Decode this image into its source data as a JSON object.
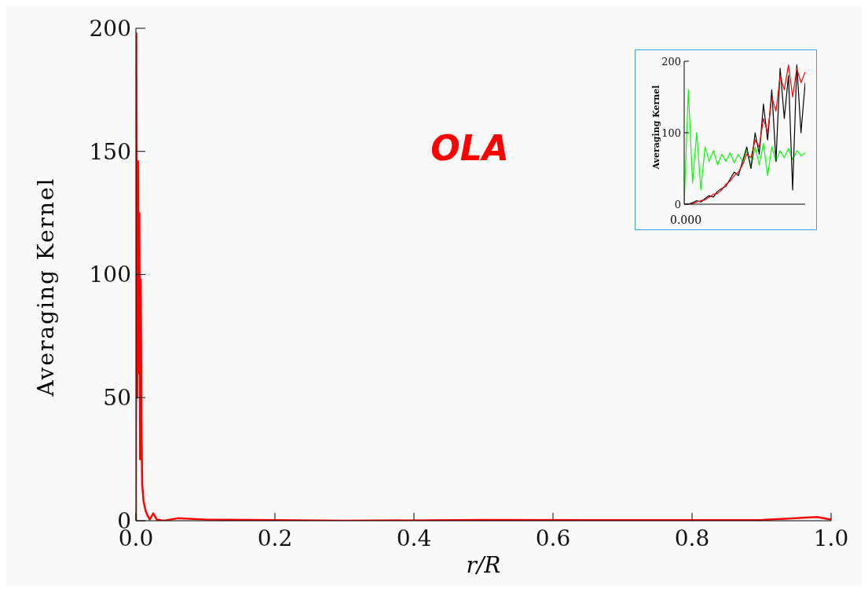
{
  "chart_data": [
    {
      "type": "line",
      "title": "OLA",
      "xlabel": "r/R",
      "ylabel": "Averaging Kernel",
      "x": [
        0,
        0.0005,
        0.001,
        0.002,
        0.003,
        0.004,
        0.005,
        0.006,
        0.007,
        0.008,
        0.009,
        0.011,
        0.014,
        0.017,
        0.02,
        0.025,
        0.03,
        0.04,
        0.06,
        0.1,
        0.3,
        0.5,
        0.7,
        0.9,
        0.98,
        1.0
      ],
      "series": [
        {
          "color": "#ff0000",
          "values": [
            0,
            198,
            120,
            50,
            146,
            60,
            125,
            25,
            98,
            40,
            15,
            8,
            4,
            2,
            0.5,
            3,
            0.5,
            0,
            1,
            0.5,
            0,
            0.3,
            0.2,
            0.3,
            1.5,
            0.5
          ]
        }
      ],
      "xlim": [
        0,
        1
      ],
      "xticks": [
        {
          "value": 0,
          "label": "0.0"
        },
        0.2,
        0.4,
        0.6,
        0.8,
        {
          "value": 1,
          "label": "1.0"
        }
      ],
      "ylim": [
        0,
        200
      ],
      "yticks": [
        0,
        50,
        100,
        150,
        200
      ],
      "marker": "none",
      "line_style": "solid"
    },
    {
      "type": "line",
      "ylabel": "Averaging Kernel",
      "categories": [
        null,
        null,
        null,
        null,
        null,
        null,
        null,
        null,
        null,
        null,
        null,
        null,
        null,
        null,
        null,
        null,
        null,
        null,
        null,
        null,
        null,
        null,
        null,
        null,
        null,
        null,
        null,
        null,
        null,
        null
      ],
      "series": [
        {
          "color": "#00ff00",
          "values": [
            0,
            160,
            30,
            100,
            20,
            80,
            60,
            75,
            55,
            70,
            60,
            72,
            58,
            70,
            60,
            75,
            50,
            80,
            55,
            85,
            40,
            80,
            60,
            75,
            65,
            78,
            62,
            75,
            68,
            72
          ]
        },
        {
          "color": "#000000",
          "values": [
            0,
            0,
            2,
            5,
            3,
            8,
            12,
            10,
            18,
            22,
            25,
            35,
            45,
            40,
            60,
            80,
            50,
            100,
            70,
            140,
            90,
            160,
            60,
            190,
            120,
            180,
            20,
            195,
            100,
            170
          ]
        },
        {
          "color": "#ff0000",
          "values": [
            0,
            0,
            1,
            3,
            5,
            6,
            10,
            14,
            15,
            20,
            28,
            32,
            40,
            45,
            55,
            70,
            65,
            90,
            80,
            120,
            100,
            150,
            130,
            180,
            160,
            195,
            150,
            190,
            170,
            185
          ]
        }
      ],
      "ylim": [
        0,
        200
      ],
      "yticks": [
        0,
        100,
        200
      ],
      "tick_labels": "y",
      "annotations": [
        "0.000"
      ],
      "marker": "none",
      "line_style": "solid"
    }
  ]
}
